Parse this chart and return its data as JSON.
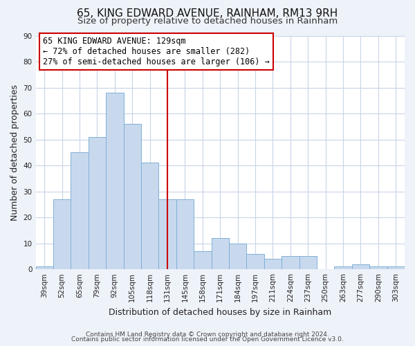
{
  "title": "65, KING EDWARD AVENUE, RAINHAM, RM13 9RH",
  "subtitle": "Size of property relative to detached houses in Rainham",
  "xlabel": "Distribution of detached houses by size in Rainham",
  "ylabel": "Number of detached properties",
  "categories": [
    "39sqm",
    "52sqm",
    "65sqm",
    "79sqm",
    "92sqm",
    "105sqm",
    "118sqm",
    "131sqm",
    "145sqm",
    "158sqm",
    "171sqm",
    "184sqm",
    "197sqm",
    "211sqm",
    "224sqm",
    "237sqm",
    "250sqm",
    "263sqm",
    "277sqm",
    "290sqm",
    "303sqm"
  ],
  "values": [
    1,
    27,
    45,
    51,
    68,
    56,
    41,
    27,
    27,
    7,
    12,
    10,
    6,
    4,
    5,
    5,
    0,
    1,
    2,
    1,
    1
  ],
  "bar_color": "#c8d9ee",
  "bar_edge_color": "#7fafd4",
  "highlight_line_color": "#cc0000",
  "annotation_text_line1": "65 KING EDWARD AVENUE: 129sqm",
  "annotation_text_line2": "← 72% of detached houses are smaller (282)",
  "annotation_text_line3": "27% of semi-detached houses are larger (106) →",
  "annotation_box_facecolor": "#ffffff",
  "annotation_box_edgecolor": "#cc0000",
  "ylim": [
    0,
    90
  ],
  "yticks": [
    0,
    10,
    20,
    30,
    40,
    50,
    60,
    70,
    80,
    90
  ],
  "footer_line1": "Contains HM Land Registry data © Crown copyright and database right 2024.",
  "footer_line2": "Contains public sector information licensed under the Open Government Licence v3.0.",
  "fig_background": "#eef2f9",
  "plot_background": "#ffffff",
  "grid_color": "#c8d4e8",
  "title_fontsize": 11,
  "subtitle_fontsize": 9.5,
  "axis_label_fontsize": 9,
  "tick_fontsize": 7.5,
  "annotation_fontsize": 8.5,
  "footer_fontsize": 6.5
}
